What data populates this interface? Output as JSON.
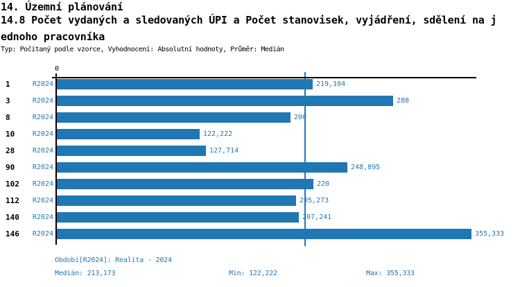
{
  "header": {
    "title_line1": "14. Územní plánování",
    "title_line2": "14.8 Počet vydaných a sledovaných ÚPI a Počet stanovisek, vyjádření, sdělení na j",
    "title_line3": "ednoho pracovníka",
    "meta": "Typ: Počítaný podle vzorce, Vyhodnocení: Absolutní hodnoty, Průměr: Medián"
  },
  "chart_data": {
    "type": "bar",
    "orientation": "horizontal",
    "title": "14.8 Počet vydaných a sledovaných ÚPI a Počet stanovisek, vyjádření, sdělení na jednoho pracovníka",
    "axis_origin_label": "0",
    "series_label": "R2024",
    "categories": [
      "1",
      "3",
      "8",
      "10",
      "28",
      "90",
      "102",
      "112",
      "140",
      "146"
    ],
    "values": [
      219.104,
      288,
      200,
      122.222,
      127.714,
      248.895,
      220,
      205.273,
      207.241,
      355.333
    ],
    "value_labels": [
      "219,104",
      "288",
      "200",
      "122,222",
      "127,714",
      "248,895",
      "220",
      "205,273",
      "207,241",
      "355,333"
    ],
    "median": 213.173,
    "min": 122.222,
    "max": 355.333,
    "xlim": [
      0,
      359.5
    ],
    "grid": false,
    "legend_position": "none"
  },
  "footer": {
    "period": "Období[R2024]: Realita - 2024",
    "median": "Medián: 213,173",
    "min": "Min: 122,222",
    "max": "Max: 355,333"
  },
  "colors": {
    "accent": "#2077b4",
    "bar": "#2077b4",
    "median_line": "#2077b4",
    "axis": "#000000",
    "text": "#000000"
  }
}
